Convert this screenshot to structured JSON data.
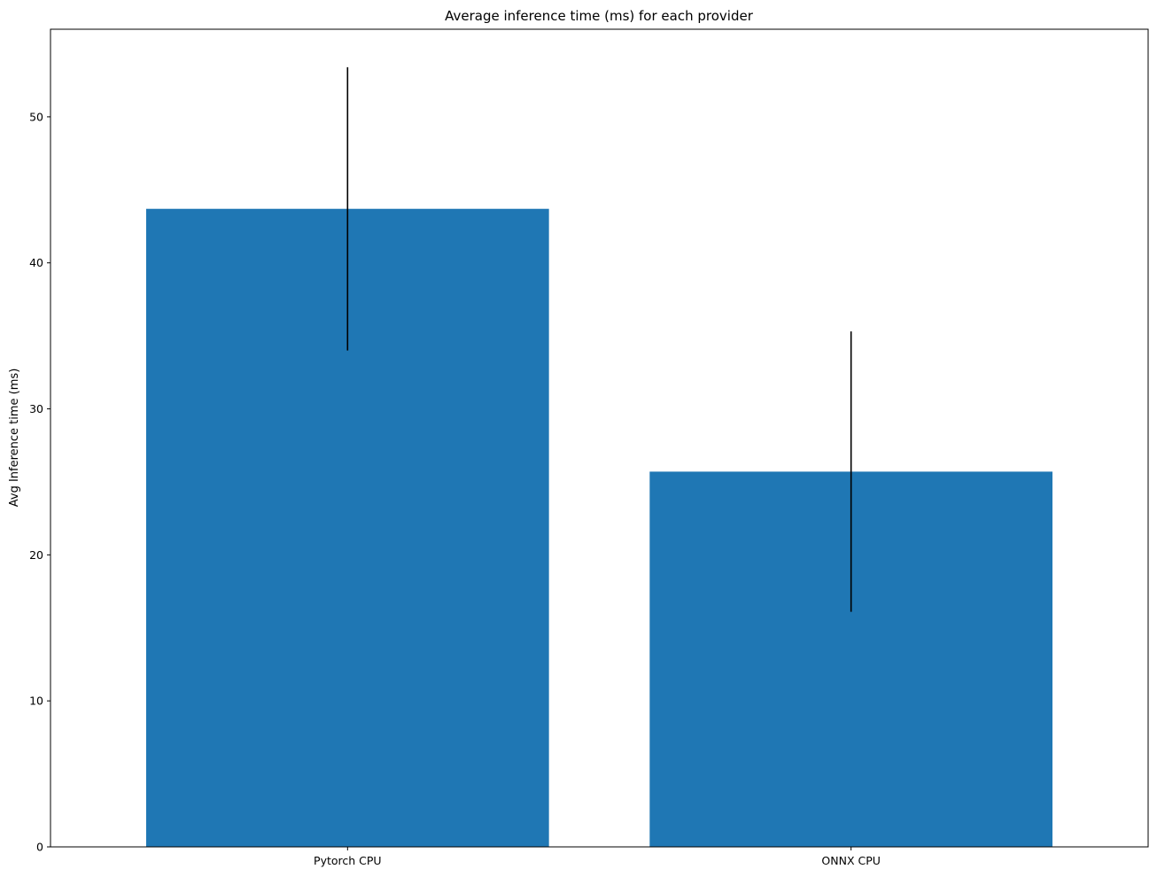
{
  "chart_data": {
    "type": "bar",
    "title": "Average inference time (ms) for each provider",
    "xlabel": "",
    "ylabel": "Avg Inference time (ms)",
    "categories": [
      "Pytorch CPU",
      "ONNX CPU"
    ],
    "values": [
      43.7,
      25.7
    ],
    "errors": [
      9.7,
      9.6
    ],
    "ylim": [
      0,
      56
    ],
    "yticks": [
      0,
      10,
      20,
      30,
      40,
      50
    ],
    "grid": false,
    "legend": "none",
    "bar_color": "#1f77b4",
    "error_color": "#000000"
  }
}
